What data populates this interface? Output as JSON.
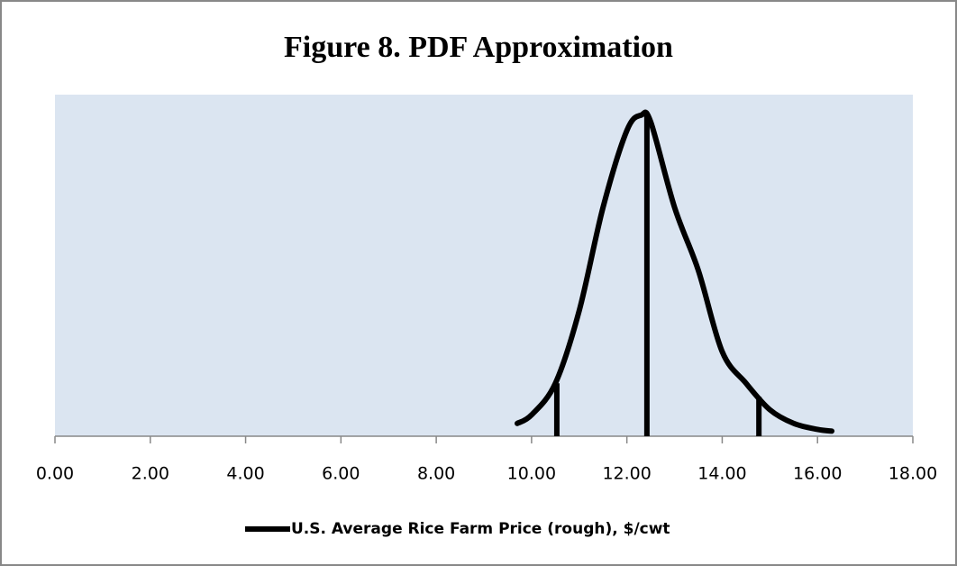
{
  "chart_data": {
    "type": "line",
    "title": "Figure 8.  PDF Approximation",
    "x": [
      9.7,
      10.0,
      10.5,
      11.0,
      11.5,
      12.0,
      12.3,
      12.5,
      13.0,
      13.5,
      14.0,
      14.5,
      15.0,
      15.5,
      16.0,
      16.3
    ],
    "series": [
      {
        "name": "U.S. Average Rice Farm Price (rough), $/cwt",
        "color": "#000000",
        "values": [
          0.015,
          0.025,
          0.062,
          0.147,
          0.268,
          0.358,
          0.376,
          0.368,
          0.268,
          0.194,
          0.099,
          0.062,
          0.031,
          0.015,
          0.008,
          0.006
        ]
      }
    ],
    "markers": {
      "x": [
        10.53,
        12.42,
        14.77
      ],
      "values": [
        0.062,
        0.376,
        0.046
      ],
      "color": "#000000"
    },
    "xlim": [
      0,
      18
    ],
    "xticks": [
      {
        "value": 0,
        "label": "0.00"
      },
      {
        "value": 2,
        "label": "2.00"
      },
      {
        "value": 4,
        "label": "4.00"
      },
      {
        "value": 6,
        "label": "6.00"
      },
      {
        "value": 8,
        "label": "8.00"
      },
      {
        "value": 10,
        "label": "10.00"
      },
      {
        "value": 12,
        "label": "12.00"
      },
      {
        "value": 14,
        "label": "14.00"
      },
      {
        "value": 16,
        "label": "16.00"
      },
      {
        "value": 18,
        "label": "18.00"
      }
    ],
    "ylim": [
      0,
      0.4
    ],
    "plot_background": "#dbe5f1"
  }
}
